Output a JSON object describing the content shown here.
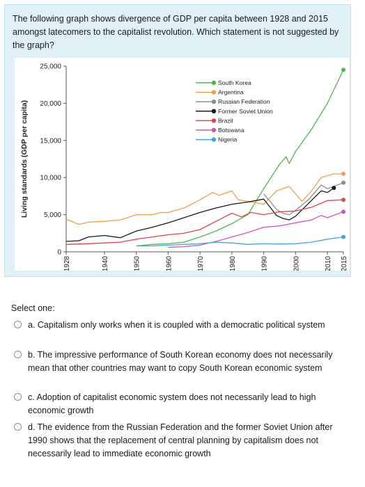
{
  "question": {
    "text": "The following graph shows divergence of GDP per capita between 1928 and 2015 amongst latecomers to the capitalist revolution. Which statement is not suggested by the graph?"
  },
  "answers": {
    "select_label": "Select one:",
    "options": [
      {
        "label": "a. Capitalism only works when it is coupled with a democratic political system"
      },
      {
        "label": "b. The impressive performance of South Korean economy does not necessarily mean that other countries may want to copy South Korean economic system"
      },
      {
        "label": "c. Adoption of capitalist economic system does not necessarily lead to high economic growth"
      },
      {
        "label": "d. The evidence from the Russian Federation and the former Soviet Union after 1990 shows that the replacement of central planning by capitalism does not necessarily lead to immediate economic growth"
      }
    ]
  },
  "chart_data": {
    "type": "line",
    "title": "",
    "xlabel": "",
    "ylabel": "Living standards (GDP per capita)",
    "xlim": [
      1928,
      2015
    ],
    "ylim": [
      0,
      25000
    ],
    "x_ticks": [
      "1928",
      "1940",
      "1950",
      "1960",
      "1970",
      "1980",
      "1990",
      "2000",
      "2010",
      "2015"
    ],
    "y_ticks": [
      "0",
      "5,000",
      "10,000",
      "15,000",
      "20,000",
      "25,000"
    ],
    "grid": false,
    "legend_position": "top-right",
    "series": [
      {
        "name": "South Korea",
        "color": "#53b350",
        "points": [
          [
            1950,
            800
          ],
          [
            1955,
            1000
          ],
          [
            1960,
            1100
          ],
          [
            1965,
            1300
          ],
          [
            1970,
            2000
          ],
          [
            1975,
            2800
          ],
          [
            1980,
            3800
          ],
          [
            1985,
            5000
          ],
          [
            1990,
            8500
          ],
          [
            1995,
            11800
          ],
          [
            1997,
            12800
          ],
          [
            1998,
            11900
          ],
          [
            2000,
            13500
          ],
          [
            2005,
            16500
          ],
          [
            2010,
            20000
          ],
          [
            2015,
            24500
          ]
        ]
      },
      {
        "name": "Argentina",
        "color": "#f0a04b",
        "points": [
          [
            1928,
            4400
          ],
          [
            1932,
            3700
          ],
          [
            1935,
            4000
          ],
          [
            1940,
            4100
          ],
          [
            1945,
            4300
          ],
          [
            1950,
            5000
          ],
          [
            1955,
            5000
          ],
          [
            1958,
            5300
          ],
          [
            1960,
            5300
          ],
          [
            1965,
            5900
          ],
          [
            1970,
            7000
          ],
          [
            1974,
            8000
          ],
          [
            1976,
            7600
          ],
          [
            1980,
            8200
          ],
          [
            1982,
            7000
          ],
          [
            1985,
            6800
          ],
          [
            1990,
            6400
          ],
          [
            1994,
            8200
          ],
          [
            1998,
            8800
          ],
          [
            2002,
            6800
          ],
          [
            2005,
            8200
          ],
          [
            2008,
            10000
          ],
          [
            2012,
            10500
          ],
          [
            2015,
            10500
          ]
        ]
      },
      {
        "name": "Russian Federation",
        "color": "#8d8d8d",
        "points": [
          [
            1990,
            7800
          ],
          [
            1992,
            6800
          ],
          [
            1994,
            5700
          ],
          [
            1996,
            5200
          ],
          [
            1998,
            5000
          ],
          [
            2000,
            5600
          ],
          [
            2004,
            7000
          ],
          [
            2008,
            9000
          ],
          [
            2010,
            8500
          ],
          [
            2015,
            9300
          ]
        ]
      },
      {
        "name": "Former Soviet Union",
        "color": "#1a1a1a",
        "points": [
          [
            1928,
            1400
          ],
          [
            1932,
            1500
          ],
          [
            1935,
            2000
          ],
          [
            1940,
            2200
          ],
          [
            1945,
            1900
          ],
          [
            1950,
            2800
          ],
          [
            1955,
            3300
          ],
          [
            1960,
            3900
          ],
          [
            1965,
            4600
          ],
          [
            1970,
            5300
          ],
          [
            1975,
            5900
          ],
          [
            1980,
            6400
          ],
          [
            1985,
            6700
          ],
          [
            1990,
            7100
          ],
          [
            1992,
            6000
          ],
          [
            1994,
            4900
          ],
          [
            1996,
            4500
          ],
          [
            1998,
            4300
          ],
          [
            2000,
            4800
          ],
          [
            2004,
            6500
          ],
          [
            2008,
            8200
          ],
          [
            2010,
            8000
          ],
          [
            2012,
            8600
          ]
        ]
      },
      {
        "name": "Brazil",
        "color": "#e0454c",
        "points": [
          [
            1928,
            1000
          ],
          [
            1935,
            1100
          ],
          [
            1940,
            1200
          ],
          [
            1945,
            1300
          ],
          [
            1950,
            1700
          ],
          [
            1955,
            2000
          ],
          [
            1960,
            2300
          ],
          [
            1965,
            2500
          ],
          [
            1970,
            3000
          ],
          [
            1975,
            4100
          ],
          [
            1980,
            5200
          ],
          [
            1983,
            4700
          ],
          [
            1986,
            5300
          ],
          [
            1990,
            5000
          ],
          [
            1995,
            5400
          ],
          [
            2000,
            5500
          ],
          [
            2005,
            6000
          ],
          [
            2010,
            6900
          ],
          [
            2015,
            7000
          ]
        ]
      },
      {
        "name": "Botswana",
        "color": "#c75ab0",
        "points": [
          [
            1960,
            600
          ],
          [
            1965,
            700
          ],
          [
            1970,
            900
          ],
          [
            1975,
            1400
          ],
          [
            1980,
            2000
          ],
          [
            1985,
            2600
          ],
          [
            1990,
            3300
          ],
          [
            1995,
            3500
          ],
          [
            2000,
            3900
          ],
          [
            2005,
            4300
          ],
          [
            2008,
            4900
          ],
          [
            2010,
            4600
          ],
          [
            2015,
            5400
          ]
        ]
      },
      {
        "name": "Nigeria",
        "color": "#44a3e0",
        "points": [
          [
            1950,
            800
          ],
          [
            1955,
            800
          ],
          [
            1960,
            900
          ],
          [
            1965,
            1000
          ],
          [
            1970,
            1100
          ],
          [
            1975,
            1300
          ],
          [
            1980,
            1200
          ],
          [
            1985,
            1000
          ],
          [
            1990,
            1100
          ],
          [
            1995,
            1050
          ],
          [
            2000,
            1100
          ],
          [
            2005,
            1300
          ],
          [
            2010,
            1700
          ],
          [
            2015,
            2000
          ]
        ]
      }
    ]
  }
}
